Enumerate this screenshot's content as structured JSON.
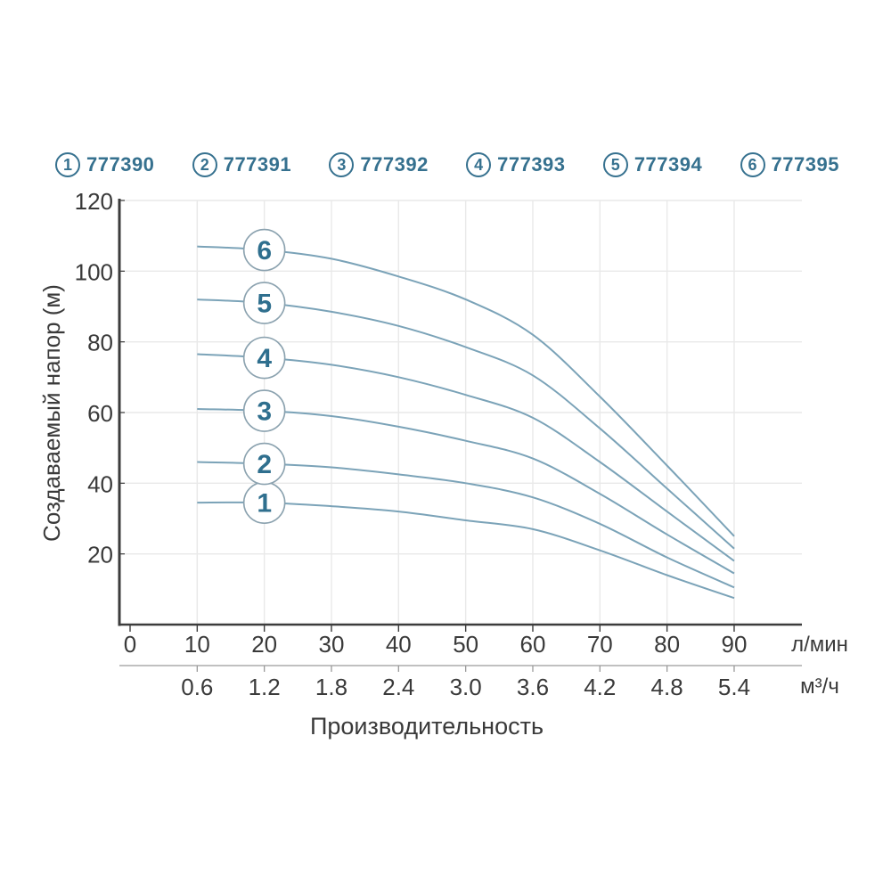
{
  "colors": {
    "accent": "#36718f",
    "curve": "#7ba3b8",
    "grid": "#e9e9e9",
    "axis": "#3c3c3c",
    "sub_axis": "#9a9a9a",
    "tick_text": "#3a3a3a",
    "marker_stroke": "#8ba2af",
    "marker_fill": "#ffffff"
  },
  "legend": {
    "items": [
      {
        "num": "1",
        "code": "777390"
      },
      {
        "num": "2",
        "code": "777391"
      },
      {
        "num": "3",
        "code": "777392"
      },
      {
        "num": "4",
        "code": "777393"
      },
      {
        "num": "5",
        "code": "777394"
      },
      {
        "num": "6",
        "code": "777395"
      }
    ]
  },
  "chart_data": {
    "type": "line",
    "title": "",
    "xlabel": "Производительность",
    "ylabel": "Создаваемый напор (м)",
    "x": [
      10,
      20,
      30,
      40,
      50,
      60,
      70,
      80,
      90
    ],
    "series": [
      {
        "curve_label": "1",
        "name": "777390",
        "values": [
          34.5,
          34.5,
          33.5,
          32,
          29.5,
          27,
          21,
          14,
          7.5
        ]
      },
      {
        "curve_label": "2",
        "name": "777391",
        "values": [
          46,
          45.5,
          44.5,
          42.5,
          40,
          36,
          28.5,
          19,
          10.5
        ]
      },
      {
        "curve_label": "3",
        "name": "777392",
        "values": [
          61,
          60.5,
          59,
          56,
          52,
          47,
          37,
          25.5,
          14.5
        ]
      },
      {
        "curve_label": "4",
        "name": "777393",
        "values": [
          76.5,
          75.5,
          73.5,
          70,
          65,
          58.5,
          46,
          32,
          18
        ]
      },
      {
        "curve_label": "5",
        "name": "777394",
        "values": [
          92,
          91,
          88.5,
          84.5,
          78.5,
          70.5,
          55.5,
          38.5,
          21.5
        ]
      },
      {
        "curve_label": "6",
        "name": "777395",
        "values": [
          107,
          106,
          103.5,
          98.5,
          92,
          82,
          64.5,
          45,
          25
        ]
      }
    ],
    "marker_circles_at_x": 20,
    "x_axis": {
      "ticks": [
        0,
        10,
        20,
        30,
        40,
        50,
        60,
        70,
        80,
        90
      ],
      "unit": "л/мин"
    },
    "x_axis_secondary": {
      "ticks": [
        "0.6",
        "1.2",
        "1.8",
        "2.4",
        "3.0",
        "3.6",
        "4.2",
        "4.8",
        "5.4"
      ],
      "unit": "м³/ч"
    },
    "y_axis": {
      "ticks": [
        20,
        40,
        60,
        80,
        100,
        120
      ]
    },
    "xlim": [
      0,
      100
    ],
    "ylim": [
      0,
      120
    ],
    "grid": true,
    "legend_position": "top"
  }
}
